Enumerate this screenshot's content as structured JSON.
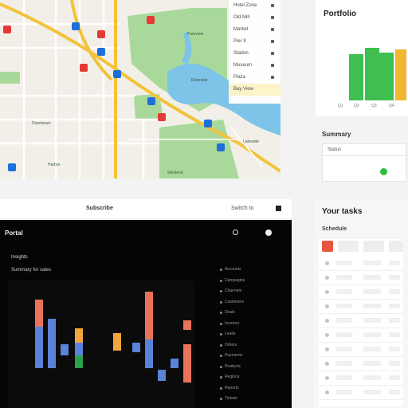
{
  "map": {
    "labels": [
      "Parkview",
      "Riverside",
      "Lakeside",
      "Downtown",
      "Westend",
      "Harbor"
    ],
    "card_rows": [
      "Hotel Zone",
      "Old Mill",
      "Market",
      "Pier 9",
      "Station",
      "Museum",
      "Plaza",
      "Bay View"
    ],
    "pin_colors": [
      "#e53935",
      "#1e6fd9",
      "#e53935",
      "#1e6fd9",
      "#e53935",
      "#1e6fd9"
    ]
  },
  "perf": {
    "title": "Portfolio",
    "ticks": [
      "Q1",
      "Q2",
      "Q3",
      "Q4"
    ]
  },
  "status": {
    "title": "Summary",
    "header": "Status"
  },
  "midstrip": {
    "left_label": "Subscribe",
    "right_label": "Switch to"
  },
  "dark": {
    "title": "Portal",
    "section": "Insights",
    "subsection": "Summary for sales",
    "list_items": [
      "Accounts",
      "Campaigns",
      "Channels",
      "Customers",
      "Deals",
      "Invoices",
      "Leads",
      "Orders",
      "Payments",
      "Products",
      "Regions",
      "Reports",
      "Tickets"
    ]
  },
  "tasks": {
    "title": "Your tasks",
    "subtitle": "Schedule",
    "accent": "#e8553f"
  }
}
